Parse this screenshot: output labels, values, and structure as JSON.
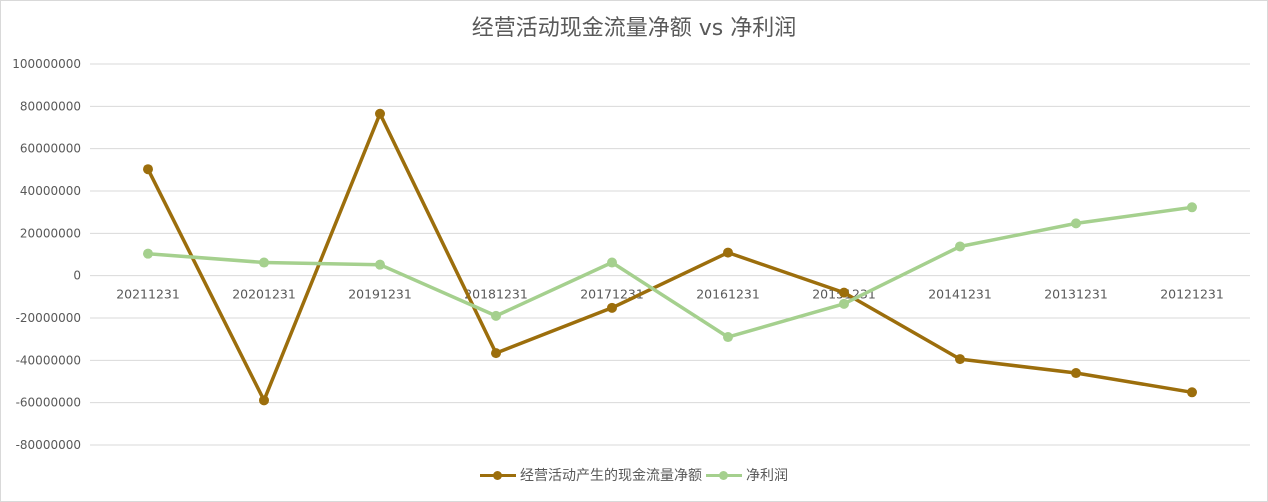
{
  "chart_data": {
    "type": "line",
    "title": "经营活动现金流量净额 vs 净利润",
    "xlabel": "",
    "ylabel": "",
    "categories": [
      "20211231",
      "20201231",
      "20191231",
      "20181231",
      "20171231",
      "20161231",
      "20151231",
      "20141231",
      "20131231",
      "20121231"
    ],
    "series": [
      {
        "name": "经营活动产生的现金流量净额",
        "color": "#9C6E0C",
        "values": [
          50300000,
          -58900000,
          76500000,
          -36600000,
          -15200000,
          10900000,
          -8000000,
          -39400000,
          -46000000,
          -55100000
        ]
      },
      {
        "name": "净利润",
        "color": "#A5D08E",
        "values": [
          10400000,
          6200000,
          5200000,
          -19000000,
          6200000,
          -29000000,
          -13300000,
          13800000,
          24700000,
          32300000
        ]
      }
    ],
    "ylim": [
      -80000000,
      100000000
    ],
    "yticks": [
      "100000000",
      "80000000",
      "60000000",
      "40000000",
      "20000000",
      "0",
      "-20000000",
      "-40000000",
      "-60000000",
      "-80000000"
    ],
    "grid": true,
    "legend_position": "bottom"
  }
}
